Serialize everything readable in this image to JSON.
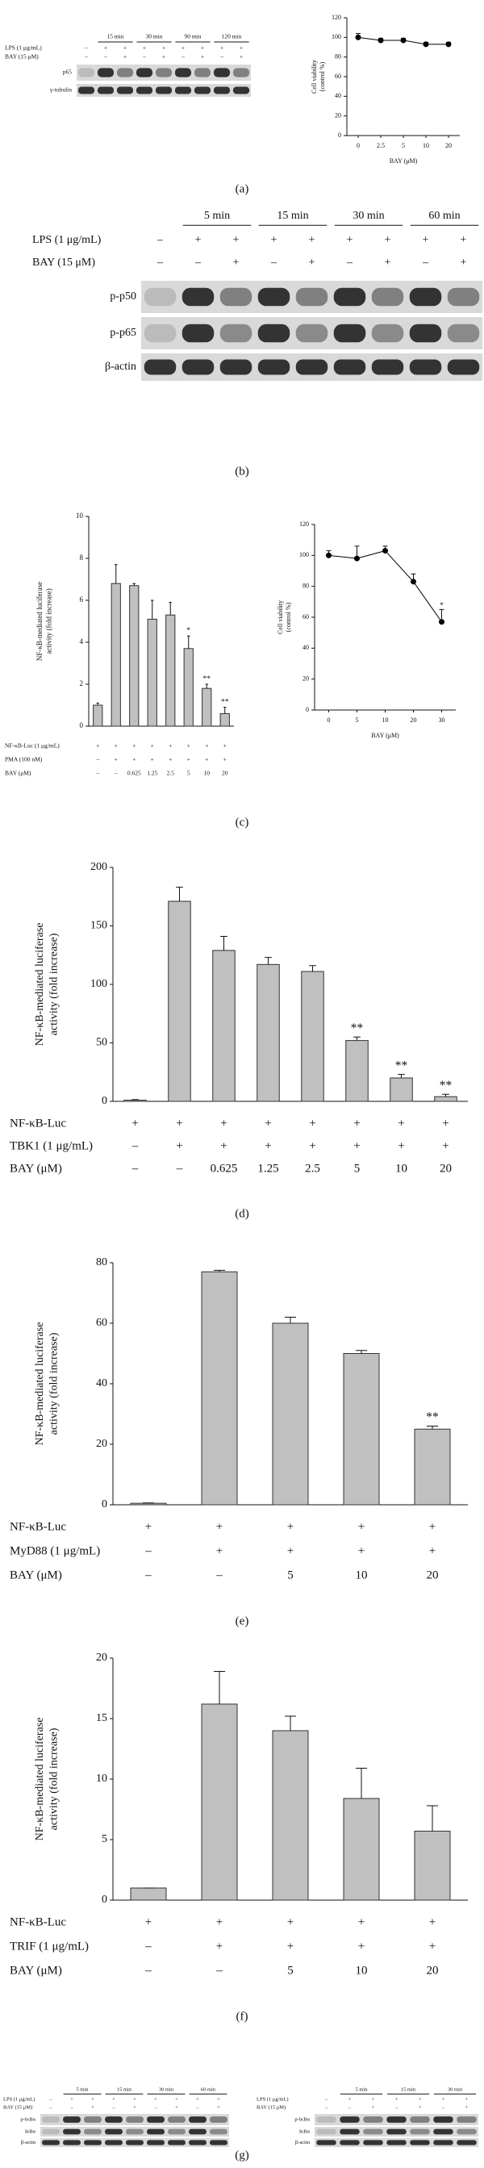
{
  "panel_labels": [
    "(a)",
    "(b)",
    "(c)",
    "(d)",
    "(e)",
    "(f)",
    "(g)"
  ],
  "blots": [
    {
      "times": [
        "15 min",
        "30 min",
        "90 min",
        "120 min"
      ],
      "rows": [
        {
          "label": "LPS (1 μg/mL)",
          "signs": [
            "–",
            "+",
            "+",
            "+",
            "+",
            "+",
            "+",
            "+",
            "+"
          ]
        },
        {
          "label": "BAY (15 μM)",
          "signs": [
            "–",
            "–",
            "+",
            "–",
            "+",
            "–",
            "+",
            "–",
            "+"
          ]
        }
      ],
      "bands": [
        "p65",
        "γ-tubulin"
      ]
    },
    {
      "times": [
        "5 min",
        "15 min",
        "30 min",
        "60 min"
      ],
      "rows": [
        {
          "label": "LPS (1 μg/mL)",
          "signs": [
            "–",
            "+",
            "+",
            "+",
            "+",
            "+",
            "+",
            "+",
            "+"
          ]
        },
        {
          "label": "BAY (15 μM)",
          "signs": [
            "–",
            "–",
            "+",
            "–",
            "+",
            "–",
            "+",
            "–",
            "+"
          ]
        }
      ],
      "bands": [
        "p-p50",
        "p-p65",
        "β-actin"
      ]
    },
    {
      "times": [
        "5 min",
        "15 min",
        "30 min",
        "60 min"
      ],
      "rows": [
        {
          "label": "LPS (1 μg/mL)",
          "signs": [
            "–",
            "+",
            "+",
            "+",
            "+",
            "+",
            "+",
            "+",
            "+"
          ]
        },
        {
          "label": "BAY (15 μM)",
          "signs": [
            "–",
            "–",
            "+",
            "–",
            "+",
            "–",
            "+",
            "–",
            "+"
          ]
        }
      ],
      "bands": [
        "p-IκBα",
        "IκBα",
        "β-actin"
      ]
    },
    {
      "times": [
        "5 min",
        "15 min",
        "30 min"
      ],
      "rows": [
        {
          "label": "LPS (1 μg/mL)",
          "signs": [
            "–",
            "+",
            "+",
            "+",
            "+",
            "+",
            "+"
          ]
        },
        {
          "label": "BAY (15 μM)",
          "signs": [
            "–",
            "–",
            "+",
            "–",
            "+",
            "–",
            "+"
          ]
        }
      ],
      "bands": [
        "p-IκBα",
        "IκBα",
        "β-actin"
      ]
    }
  ],
  "chart_data": [
    {
      "type": "line",
      "ylabel": [
        "Cell viability",
        "(control %)"
      ],
      "xlabel": "BAY (μM)",
      "categories": [
        "0",
        "2.5",
        "5",
        "10",
        "20"
      ],
      "values": [
        100,
        97,
        97,
        93,
        93
      ],
      "errors": [
        4,
        2,
        2,
        2,
        2
      ],
      "ylim": [
        0,
        120
      ],
      "yticks": [
        0,
        20,
        40,
        60,
        80,
        100,
        120
      ],
      "color": "#000000"
    },
    {
      "type": "bar",
      "ylabel": [
        "NF-κB-mediated luciferase",
        "activity (fold increase)"
      ],
      "values": [
        1,
        6.8,
        6.7,
        5.1,
        5.3,
        3.7,
        1.8,
        0.6
      ],
      "errors": [
        0.1,
        0.9,
        0.1,
        0.9,
        0.6,
        0.6,
        0.2,
        0.3
      ],
      "significance": [
        null,
        null,
        null,
        null,
        null,
        "*",
        "**",
        "**"
      ],
      "conditions": [
        {
          "label": "NF-κB-Luc (1 μg/mL)",
          "values": [
            "+",
            "+",
            "+",
            "+",
            "+",
            "+",
            "+",
            "+"
          ]
        },
        {
          "label": "PMA (100 nM)",
          "values": [
            "–",
            "+",
            "+",
            "+",
            "+",
            "+",
            "+",
            "+"
          ]
        },
        {
          "label": "BAY (μM)",
          "values": [
            "–",
            "–",
            "0.625",
            "1.25",
            "2.5",
            "5",
            "10",
            "20"
          ]
        }
      ],
      "ylim": [
        0,
        10
      ],
      "yticks": [
        0,
        2,
        4,
        6,
        8,
        10
      ],
      "color": "#c0c0c0"
    },
    {
      "type": "line",
      "ylabel": [
        "Cell viability",
        "(control %)"
      ],
      "xlabel": "BAY (μM)",
      "categories": [
        "0",
        "5",
        "10",
        "20",
        "30"
      ],
      "values": [
        100,
        98,
        103,
        83,
        57
      ],
      "errors": [
        3,
        8,
        3,
        5,
        8
      ],
      "significance": [
        null,
        null,
        null,
        null,
        "*"
      ],
      "ylim": [
        0,
        120
      ],
      "yticks": [
        0,
        20,
        40,
        60,
        80,
        100,
        120
      ],
      "color": "#000000"
    },
    {
      "type": "bar",
      "ylabel": [
        "NF-κB-mediated luciferase",
        "activity (fold increase)"
      ],
      "values": [
        1,
        171,
        129,
        117,
        111,
        52,
        20,
        4
      ],
      "errors": [
        0.5,
        12,
        12,
        6,
        5,
        3,
        3,
        2
      ],
      "significance": [
        null,
        null,
        null,
        null,
        null,
        "**",
        "**",
        "**"
      ],
      "conditions": [
        {
          "label": "NF-κB-Luc",
          "values": [
            "+",
            "+",
            "+",
            "+",
            "+",
            "+",
            "+",
            "+"
          ]
        },
        {
          "label": "TBK1 (1 μg/mL)",
          "values": [
            "–",
            "+",
            "+",
            "+",
            "+",
            "+",
            "+",
            "+"
          ]
        },
        {
          "label": "BAY (μM)",
          "values": [
            "–",
            "–",
            "0.625",
            "1.25",
            "2.5",
            "5",
            "10",
            "20"
          ]
        }
      ],
      "ylim": [
        0,
        200
      ],
      "yticks": [
        0,
        50,
        100,
        150,
        200
      ],
      "color": "#c0c0c0"
    },
    {
      "type": "bar",
      "ylabel": [
        "NF-κB-mediated luciferase",
        "activity (fold increase)"
      ],
      "values": [
        0.5,
        77,
        60,
        50,
        25
      ],
      "errors": [
        0.1,
        0.5,
        2,
        1,
        1
      ],
      "significance": [
        null,
        null,
        null,
        null,
        "**"
      ],
      "conditions": [
        {
          "label": "NF-κB-Luc",
          "values": [
            "+",
            "+",
            "+",
            "+",
            "+"
          ]
        },
        {
          "label": "MyD88 (1 μg/mL)",
          "values": [
            "–",
            "+",
            "+",
            "+",
            "+"
          ]
        },
        {
          "label": "BAY (μM)",
          "values": [
            "–",
            "–",
            "5",
            "10",
            "20"
          ]
        }
      ],
      "ylim": [
        0,
        80
      ],
      "yticks": [
        0,
        20,
        40,
        60,
        80
      ],
      "color": "#c0c0c0"
    },
    {
      "type": "bar",
      "ylabel": [
        "NF-κB-mediated luciferase",
        "activity (fold increase)"
      ],
      "values": [
        1,
        16.2,
        14,
        8.4,
        5.7
      ],
      "errors": [
        0,
        2.7,
        1.2,
        2.5,
        2.1
      ],
      "conditions": [
        {
          "label": "NF-κB-Luc",
          "values": [
            "+",
            "+",
            "+",
            "+",
            "+"
          ]
        },
        {
          "label": "TRIF (1 μg/mL)",
          "values": [
            "–",
            "+",
            "+",
            "+",
            "+"
          ]
        },
        {
          "label": "BAY (μM)",
          "values": [
            "–",
            "–",
            "5",
            "10",
            "20"
          ]
        }
      ],
      "ylim": [
        0,
        20
      ],
      "yticks": [
        0,
        5,
        10,
        15,
        20
      ],
      "color": "#c0c0c0"
    }
  ]
}
